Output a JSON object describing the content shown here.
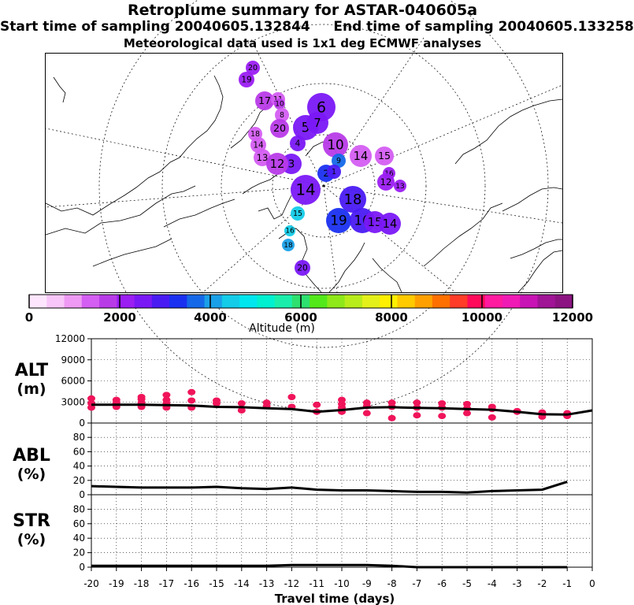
{
  "header": {
    "title": "Retroplume summary for ASTAR-040605a",
    "start_label": "Start time of sampling 20040605.132844",
    "end_label": "End time of sampling 20040605.133258",
    "met_label": "Meteorological data used is 1x1 deg ECMWF analyses"
  },
  "map": {
    "plume_clusters": [
      {
        "label": "20",
        "day": 20,
        "alt": 2100
      },
      {
        "label": "19",
        "day": 19,
        "alt": 2000
      },
      {
        "label": "17",
        "day": 17,
        "alt": 1700
      },
      {
        "label": "11",
        "day": 11,
        "alt": 1500
      },
      {
        "label": "10",
        "day": 10,
        "alt": 1600
      },
      {
        "label": "8",
        "day": 8,
        "alt": 1500
      },
      {
        "label": "6",
        "day": 6,
        "alt": 2400
      },
      {
        "label": "5",
        "day": 5,
        "alt": 2600
      },
      {
        "label": "7",
        "day": 7,
        "alt": 2500
      },
      {
        "label": "4",
        "day": 4,
        "alt": 2700
      },
      {
        "label": "3",
        "day": 3,
        "alt": 2500
      },
      {
        "label": "20",
        "day": 20,
        "alt": 1900
      },
      {
        "label": "18",
        "day": 18,
        "alt": 1400
      },
      {
        "label": "14",
        "day": 14,
        "alt": 1300
      },
      {
        "label": "13",
        "day": 13,
        "alt": 1500
      },
      {
        "label": "12",
        "day": 12,
        "alt": 1600
      },
      {
        "label": "10",
        "day": 10,
        "alt": 1800
      },
      {
        "label": "9",
        "day": 9,
        "alt": 3600
      },
      {
        "label": "14",
        "day": 14,
        "alt": 1400
      },
      {
        "label": "15",
        "day": 15,
        "alt": 1500
      },
      {
        "label": "16",
        "day": 16,
        "alt": 2100
      },
      {
        "label": "12",
        "day": 12,
        "alt": 2000
      },
      {
        "label": "13",
        "day": 13,
        "alt": 2000
      },
      {
        "label": "14",
        "day": 14,
        "alt": 2700
      },
      {
        "label": "18",
        "day": 18,
        "alt": 2800
      },
      {
        "label": "19",
        "day": 19,
        "alt": 3300
      },
      {
        "label": "16",
        "day": 16,
        "alt": 2800
      },
      {
        "label": "15",
        "day": 15,
        "alt": 2700
      },
      {
        "label": "14",
        "day": 14,
        "alt": 2600
      },
      {
        "label": "15",
        "day": 15,
        "alt": 4300
      },
      {
        "label": "16",
        "day": 16,
        "alt": 4400
      },
      {
        "label": "18",
        "day": 18,
        "alt": 4200
      },
      {
        "label": "20",
        "day": 20,
        "alt": 2700
      },
      {
        "label": "2",
        "day": 2,
        "alt": 3200
      },
      {
        "label": "1",
        "day": 1,
        "alt": 3000
      }
    ]
  },
  "colorbar": {
    "axis_label": "Altitude (m)",
    "ticks": [
      "0",
      "2000",
      "4000",
      "6000",
      "8000",
      "10000",
      "12000"
    ],
    "colors": [
      "#fde6fd",
      "#f8c6f8",
      "#ee99f3",
      "#d45ef2",
      "#b83be8",
      "#9b1ef2",
      "#7a18f5",
      "#4a1af3",
      "#1a30f0",
      "#1568e8",
      "#1aa0e8",
      "#14cce8",
      "#00e6ee",
      "#00f0d0",
      "#1aeeaa",
      "#2de070",
      "#53e81a",
      "#8ee81a",
      "#b8ec1a",
      "#e4f01a",
      "#fff000",
      "#ffca00",
      "#ffa000",
      "#ff7000",
      "#ff3c28",
      "#ff0a5a",
      "#ff1aa0",
      "#f01ab4",
      "#c814b4",
      "#a01496",
      "#8c1482"
    ]
  },
  "panels": {
    "alt": {
      "label": "ALT",
      "unit": "(m)"
    },
    "abl": {
      "label": "ABL",
      "unit": "(%)"
    },
    "str": {
      "label": "STR",
      "unit": "(%)"
    }
  },
  "chart_data": {
    "type": "line",
    "title": "Retroplume summary for ASTAR-040605a",
    "xlabel": "Travel time (days)",
    "xlim": [
      -20,
      0
    ],
    "x_ticks": [
      -20,
      -19,
      -18,
      -17,
      -16,
      -15,
      -14,
      -13,
      -12,
      -11,
      -10,
      -9,
      -8,
      -7,
      -6,
      -5,
      -4,
      -3,
      -2,
      -1,
      0
    ],
    "x_tick_labels": [
      "-20",
      "-19",
      "-18",
      "-17",
      "-16",
      "-15",
      "-14",
      "-13",
      "-12",
      "-11",
      "-10",
      "-9",
      "-8",
      "-7",
      "-6",
      "-5",
      "-4",
      "-3",
      "-2",
      "-1",
      "0"
    ],
    "series": [
      {
        "name": "ALT",
        "ylabel": "ALT (m)",
        "ylim": [
          0,
          12000
        ],
        "y_ticks": [
          0,
          3000,
          6000,
          9000,
          12000
        ],
        "x": [
          -20,
          -19,
          -18,
          -17,
          -16,
          -15,
          -14,
          -13,
          -12,
          -11,
          -10,
          -9,
          -8,
          -7,
          -6,
          -5,
          -4,
          -3,
          -2,
          -1,
          0
        ],
        "values": [
          2600,
          2600,
          2600,
          2550,
          2500,
          2300,
          2250,
          2100,
          2000,
          1600,
          1850,
          2200,
          2250,
          2150,
          2100,
          2000,
          1900,
          1600,
          1250,
          1200,
          1800
        ],
        "cluster_points": [
          {
            "x": -20,
            "y": [
              3500,
              2200,
              2800
            ]
          },
          {
            "x": -19,
            "y": [
              3300,
              2300,
              2900
            ]
          },
          {
            "x": -18,
            "y": [
              3400,
              2300,
              2900,
              3700
            ]
          },
          {
            "x": -17,
            "y": [
              3300,
              2200,
              2800,
              4000
            ]
          },
          {
            "x": -16,
            "y": [
              4400,
              3200,
              2200
            ]
          },
          {
            "x": -15,
            "y": [
              2800,
              3200
            ]
          },
          {
            "x": -14,
            "y": [
              2800,
              1800
            ]
          },
          {
            "x": -13,
            "y": [
              2900,
              2400
            ]
          },
          {
            "x": -12,
            "y": [
              3700,
              2300
            ]
          },
          {
            "x": -11,
            "y": [
              1600,
              2600
            ]
          },
          {
            "x": -10,
            "y": [
              3300,
              2700,
              1600,
              2200
            ]
          },
          {
            "x": -9,
            "y": [
              2900,
              2400,
              1400
            ]
          },
          {
            "x": -8,
            "y": [
              2900,
              2300,
              700
            ]
          },
          {
            "x": -7,
            "y": [
              2900,
              2200,
              1100
            ]
          },
          {
            "x": -6,
            "y": [
              2800,
              2200,
              1000
            ]
          },
          {
            "x": -5,
            "y": [
              2700,
              2100,
              1400
            ]
          },
          {
            "x": -4,
            "y": [
              2300,
              2000,
              800
            ]
          },
          {
            "x": -3,
            "y": [
              1700,
              1600
            ]
          },
          {
            "x": -2,
            "y": [
              1500,
              900
            ]
          },
          {
            "x": -1,
            "y": [
              1400,
              1000
            ]
          }
        ]
      },
      {
        "name": "ABL",
        "ylabel": "ABL (%)",
        "ylim": [
          0,
          100
        ],
        "y_ticks": [
          0,
          20,
          40,
          60,
          80
        ],
        "x": [
          -20,
          -19,
          -18,
          -17,
          -16,
          -15,
          -14,
          -13,
          -12,
          -11,
          -10,
          -9,
          -8,
          -7,
          -6,
          -5,
          -4,
          -3,
          -2,
          -1
        ],
        "values": [
          12,
          11,
          10,
          10,
          10,
          11,
          9,
          8,
          10,
          7,
          6,
          6,
          5,
          4,
          4,
          3,
          5,
          6,
          7,
          18
        ]
      },
      {
        "name": "STR",
        "ylabel": "STR (%)",
        "ylim": [
          0,
          100
        ],
        "y_ticks": [
          0,
          20,
          40,
          60,
          80
        ],
        "x": [
          -20,
          -19,
          -18,
          -17,
          -16,
          -15,
          -14,
          -13,
          -12,
          -11,
          -10,
          -9,
          -8,
          -7,
          -6,
          -5,
          -4,
          -3,
          -2,
          -1
        ],
        "values": [
          2,
          2,
          2,
          2,
          2,
          2,
          2,
          2,
          3,
          3,
          3,
          3,
          2,
          0,
          0,
          0,
          0,
          0,
          0,
          0
        ]
      }
    ]
  }
}
